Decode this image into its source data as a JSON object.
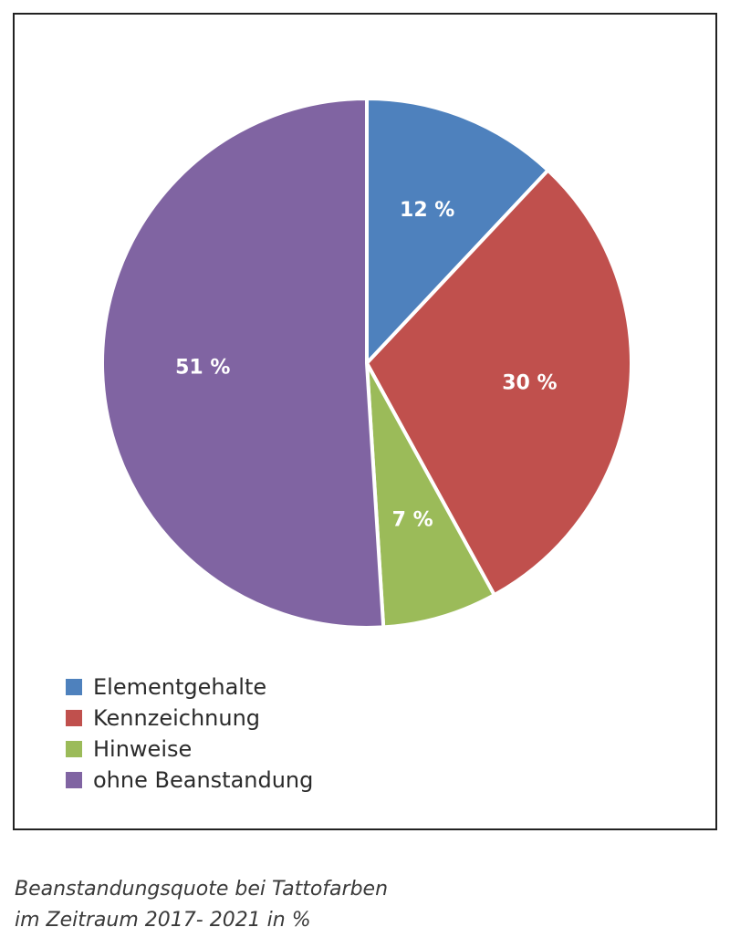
{
  "chart_data": {
    "type": "pie",
    "slices": [
      {
        "label": "Elementgehalte",
        "value": 12,
        "value_label": "12 %",
        "color": "#4e81bd"
      },
      {
        "label": "Kennzeichnung",
        "value": 30,
        "value_label": "30 %",
        "color": "#c0504d"
      },
      {
        "label": "Hinweise",
        "value": 7,
        "value_label": "7 %",
        "color": "#9bbb59"
      },
      {
        "label": "ohne Beanstandung",
        "value": 51,
        "value_label": "51 %",
        "color": "#8064a2"
      }
    ],
    "start_angle_deg": 0,
    "direction": "clockwise",
    "legend_position": "bottom-left"
  },
  "caption": {
    "line1": "Beanstandungsquote bei Tattofarben",
    "line2": "im Zeitraum 2017- 2021 in %"
  }
}
